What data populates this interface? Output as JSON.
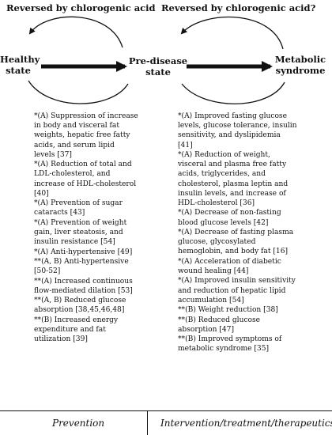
{
  "titles": {
    "left": "Reversed by chlorogenic acid",
    "right": "Reversed by chlorogenic acid?"
  },
  "states": {
    "healthy": [
      "Healthy",
      "state"
    ],
    "pre_disease": [
      "Pre-disease",
      "state"
    ],
    "metabolic": [
      "Metabolic",
      "syndrome"
    ]
  },
  "left_items": [
    [
      "*(A) Suppression of increase",
      "in body and visceral fat",
      "weights, hepatic free fatty",
      "acids, and serum lipid",
      "levels [37]"
    ],
    [
      "*(A) Reduction of total and",
      "LDL-cholesterol, and",
      "increase of HDL-cholesterol",
      "[40]"
    ],
    [
      "*(A) Prevention of sugar",
      "cataracts [43]"
    ],
    [
      "*(A) Prevention of weight",
      "gain, liver steatosis, and",
      "insulin resistance [54]"
    ],
    [
      "*(A) Anti-hypertensive [49]"
    ],
    [
      "**(A, B) Anti-hypertensive",
      "[50-52]"
    ],
    [
      "**(A) Increased continuous",
      "flow-mediated dilation [53]"
    ],
    [
      "**(A, B) Reduced glucose",
      "absorption [38,45,46,48]"
    ],
    [
      "**(B) Increased energy",
      "expenditure and fat",
      "utilization [39]"
    ]
  ],
  "right_items": [
    [
      "*(A) Improved fasting glucose",
      "levels, glucose tolerance, insulin",
      "sensitivity, and dyslipidemia",
      "[41]"
    ],
    [
      "*(A) Reduction of weight,",
      "visceral and plasma free fatty",
      "acids, triglycerides, and",
      "cholesterol, plasma leptin and",
      "insulin levels, and increase of",
      "HDL-cholesterol [36]"
    ],
    [
      "*(A) Decrease of non-fasting",
      "blood glucose levels [42]"
    ],
    [
      "*(A) Decrease of fasting plasma",
      "glucose, glycosylated",
      "hemoglobin, and body fat [16]"
    ],
    [
      "*(A) Acceleration of diabetic",
      "wound healing [44]"
    ],
    [
      "*(A) Improved insulin sensitivity",
      "and reduction of hepatic lipid",
      "accumulation [54]"
    ],
    [
      "**(B) Weight reduction [38]"
    ],
    [
      "**(B) Reduced glucose",
      "absorption [47]"
    ],
    [
      "**(B) Improved symptoms of",
      "metabolic syndrome [35]"
    ]
  ],
  "footer": {
    "left": "Prevention",
    "right": "Intervention/treatment/therapeutics"
  }
}
